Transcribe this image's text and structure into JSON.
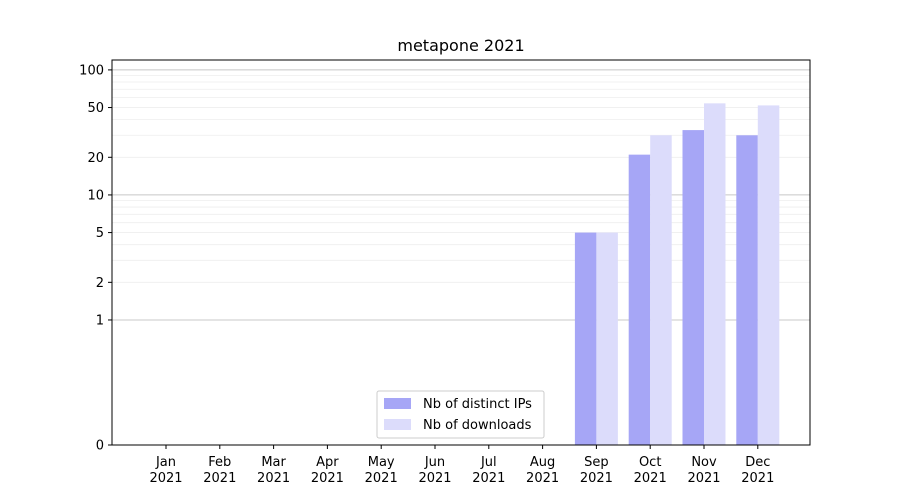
{
  "chart_data": {
    "type": "bar",
    "title": "metapone 2021",
    "xlabel": "",
    "ylabel": "",
    "yscale": "symlog",
    "ylim": [
      0,
      120
    ],
    "ytick_values": [
      0,
      1,
      2,
      5,
      10,
      20,
      50,
      100
    ],
    "ytick_labels": [
      "0",
      "1",
      "2",
      "5",
      "10",
      "20",
      "50",
      "100"
    ],
    "categories": [
      [
        "Jan",
        "2021"
      ],
      [
        "Feb",
        "2021"
      ],
      [
        "Mar",
        "2021"
      ],
      [
        "Apr",
        "2021"
      ],
      [
        "May",
        "2021"
      ],
      [
        "Jun",
        "2021"
      ],
      [
        "Jul",
        "2021"
      ],
      [
        "Aug",
        "2021"
      ],
      [
        "Sep",
        "2021"
      ],
      [
        "Oct",
        "2021"
      ],
      [
        "Nov",
        "2021"
      ],
      [
        "Dec",
        "2021"
      ]
    ],
    "series": [
      {
        "name": "Nb of distinct IPs",
        "color": "#a6a6f6",
        "values": [
          0,
          0,
          0,
          0,
          0,
          0,
          0,
          0,
          5,
          21,
          33,
          30
        ]
      },
      {
        "name": "Nb of downloads",
        "color": "#dcdcfb",
        "values": [
          0,
          0,
          0,
          0,
          0,
          0,
          0,
          0,
          5,
          30,
          54,
          52
        ]
      }
    ],
    "grid": true,
    "legend_position": "bottom-center"
  }
}
